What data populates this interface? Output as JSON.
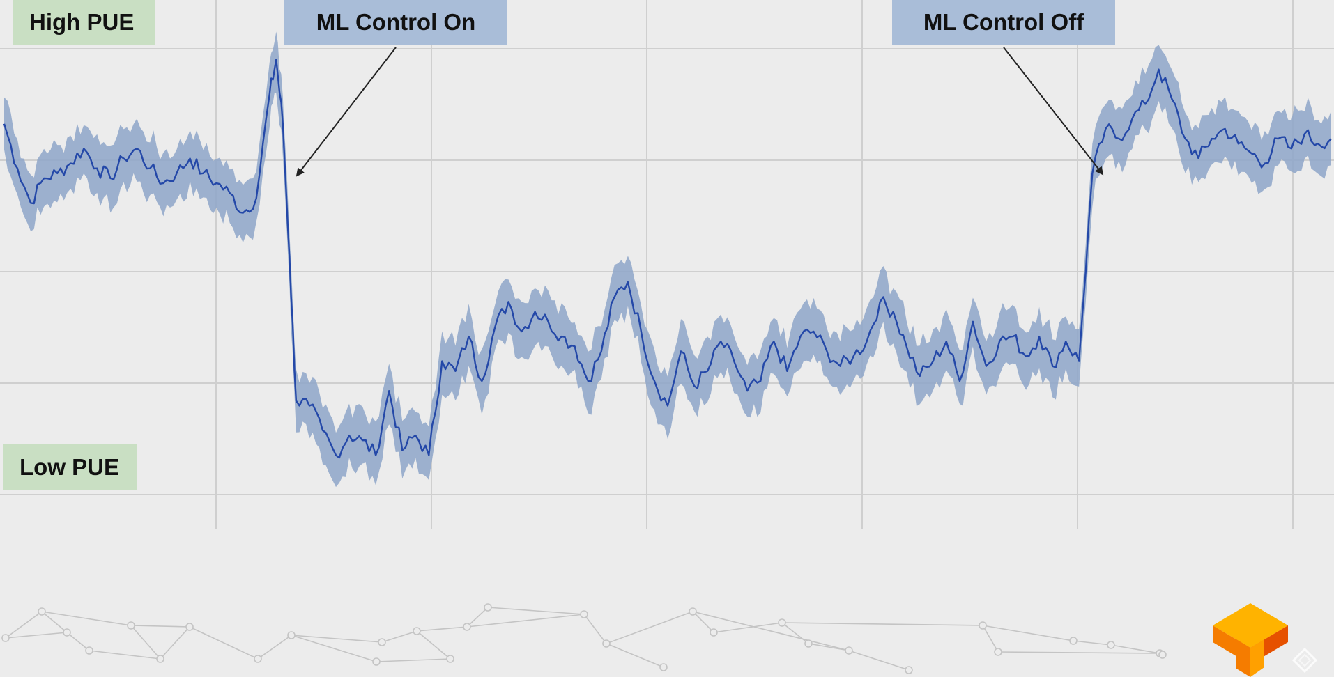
{
  "labels": {
    "high_pue": "High PUE",
    "low_pue": "Low PUE",
    "ml_on": "ML Control On",
    "ml_off": "ML Control Off"
  },
  "colors": {
    "line": "#2448a8",
    "band": "#8ea6c9",
    "grid": "#cfcfcf",
    "pue_box": "#c9dfc3",
    "ml_box": "#a9bdd8",
    "arrow": "#222222",
    "network": "#c4c4c4",
    "logo_light": "#ffb300",
    "logo_dark": "#e65100"
  },
  "icons": {
    "logo": "tensorflow-logo-icon",
    "corner": "diamond-outline-icon"
  },
  "chart_data": {
    "type": "line",
    "title": "",
    "xlabel": "",
    "ylabel": "",
    "grid": true,
    "ylim": [
      0,
      100
    ],
    "xlim": [
      0,
      100
    ],
    "band": true,
    "series": [
      {
        "x": [
          0,
          1,
          2,
          3,
          4,
          5,
          6,
          7,
          8,
          9,
          10,
          11,
          12,
          13,
          14,
          15,
          16,
          17,
          18,
          19,
          20,
          20.5,
          21,
          21.5,
          22,
          23,
          24,
          25,
          26,
          27,
          28,
          29,
          30,
          31,
          32,
          33,
          34,
          35,
          36,
          37,
          38,
          39,
          40,
          41,
          42,
          43,
          44,
          45,
          46,
          47,
          48,
          49,
          50,
          51,
          52,
          53,
          54,
          55,
          56,
          57,
          58,
          59,
          60,
          61,
          62,
          63,
          64,
          65,
          66,
          67,
          68,
          69,
          70,
          71,
          72,
          73,
          74,
          75,
          76,
          77,
          78,
          79,
          80,
          81,
          82,
          83,
          84,
          85,
          86,
          87,
          88,
          89,
          90,
          91,
          92,
          93,
          94,
          95,
          96,
          97,
          98,
          99,
          100
        ],
        "values": [
          82,
          73,
          66,
          71,
          72,
          74,
          77,
          73,
          71,
          75,
          77,
          73,
          70,
          72,
          75,
          72,
          70,
          68,
          64,
          67,
          88,
          95,
          82,
          55,
          26,
          25,
          20,
          15,
          19,
          18,
          15,
          28,
          16,
          19,
          15,
          34,
          32,
          39,
          30,
          41,
          46,
          40,
          44,
          42,
          39,
          37,
          30,
          36,
          47,
          50,
          40,
          30,
          25,
          36,
          29,
          32,
          38,
          34,
          28,
          30,
          38,
          32,
          39,
          40,
          36,
          33,
          35,
          38,
          46,
          44,
          37,
          31,
          34,
          38,
          30,
          42,
          33,
          38,
          39,
          35,
          39,
          33,
          38,
          34,
          72,
          81,
          79,
          83,
          86,
          93,
          87,
          79,
          75,
          79,
          81,
          78,
          76,
          74,
          79,
          77,
          80,
          78,
          79
        ]
      }
    ],
    "annotations": [
      {
        "text": "High PUE",
        "position": "top-left"
      },
      {
        "text": "Low PUE",
        "position": "bottom-left"
      },
      {
        "text": "ML Control On",
        "points_to_x": 22
      },
      {
        "text": "ML Control Off",
        "points_to_x": 83.5
      }
    ]
  }
}
